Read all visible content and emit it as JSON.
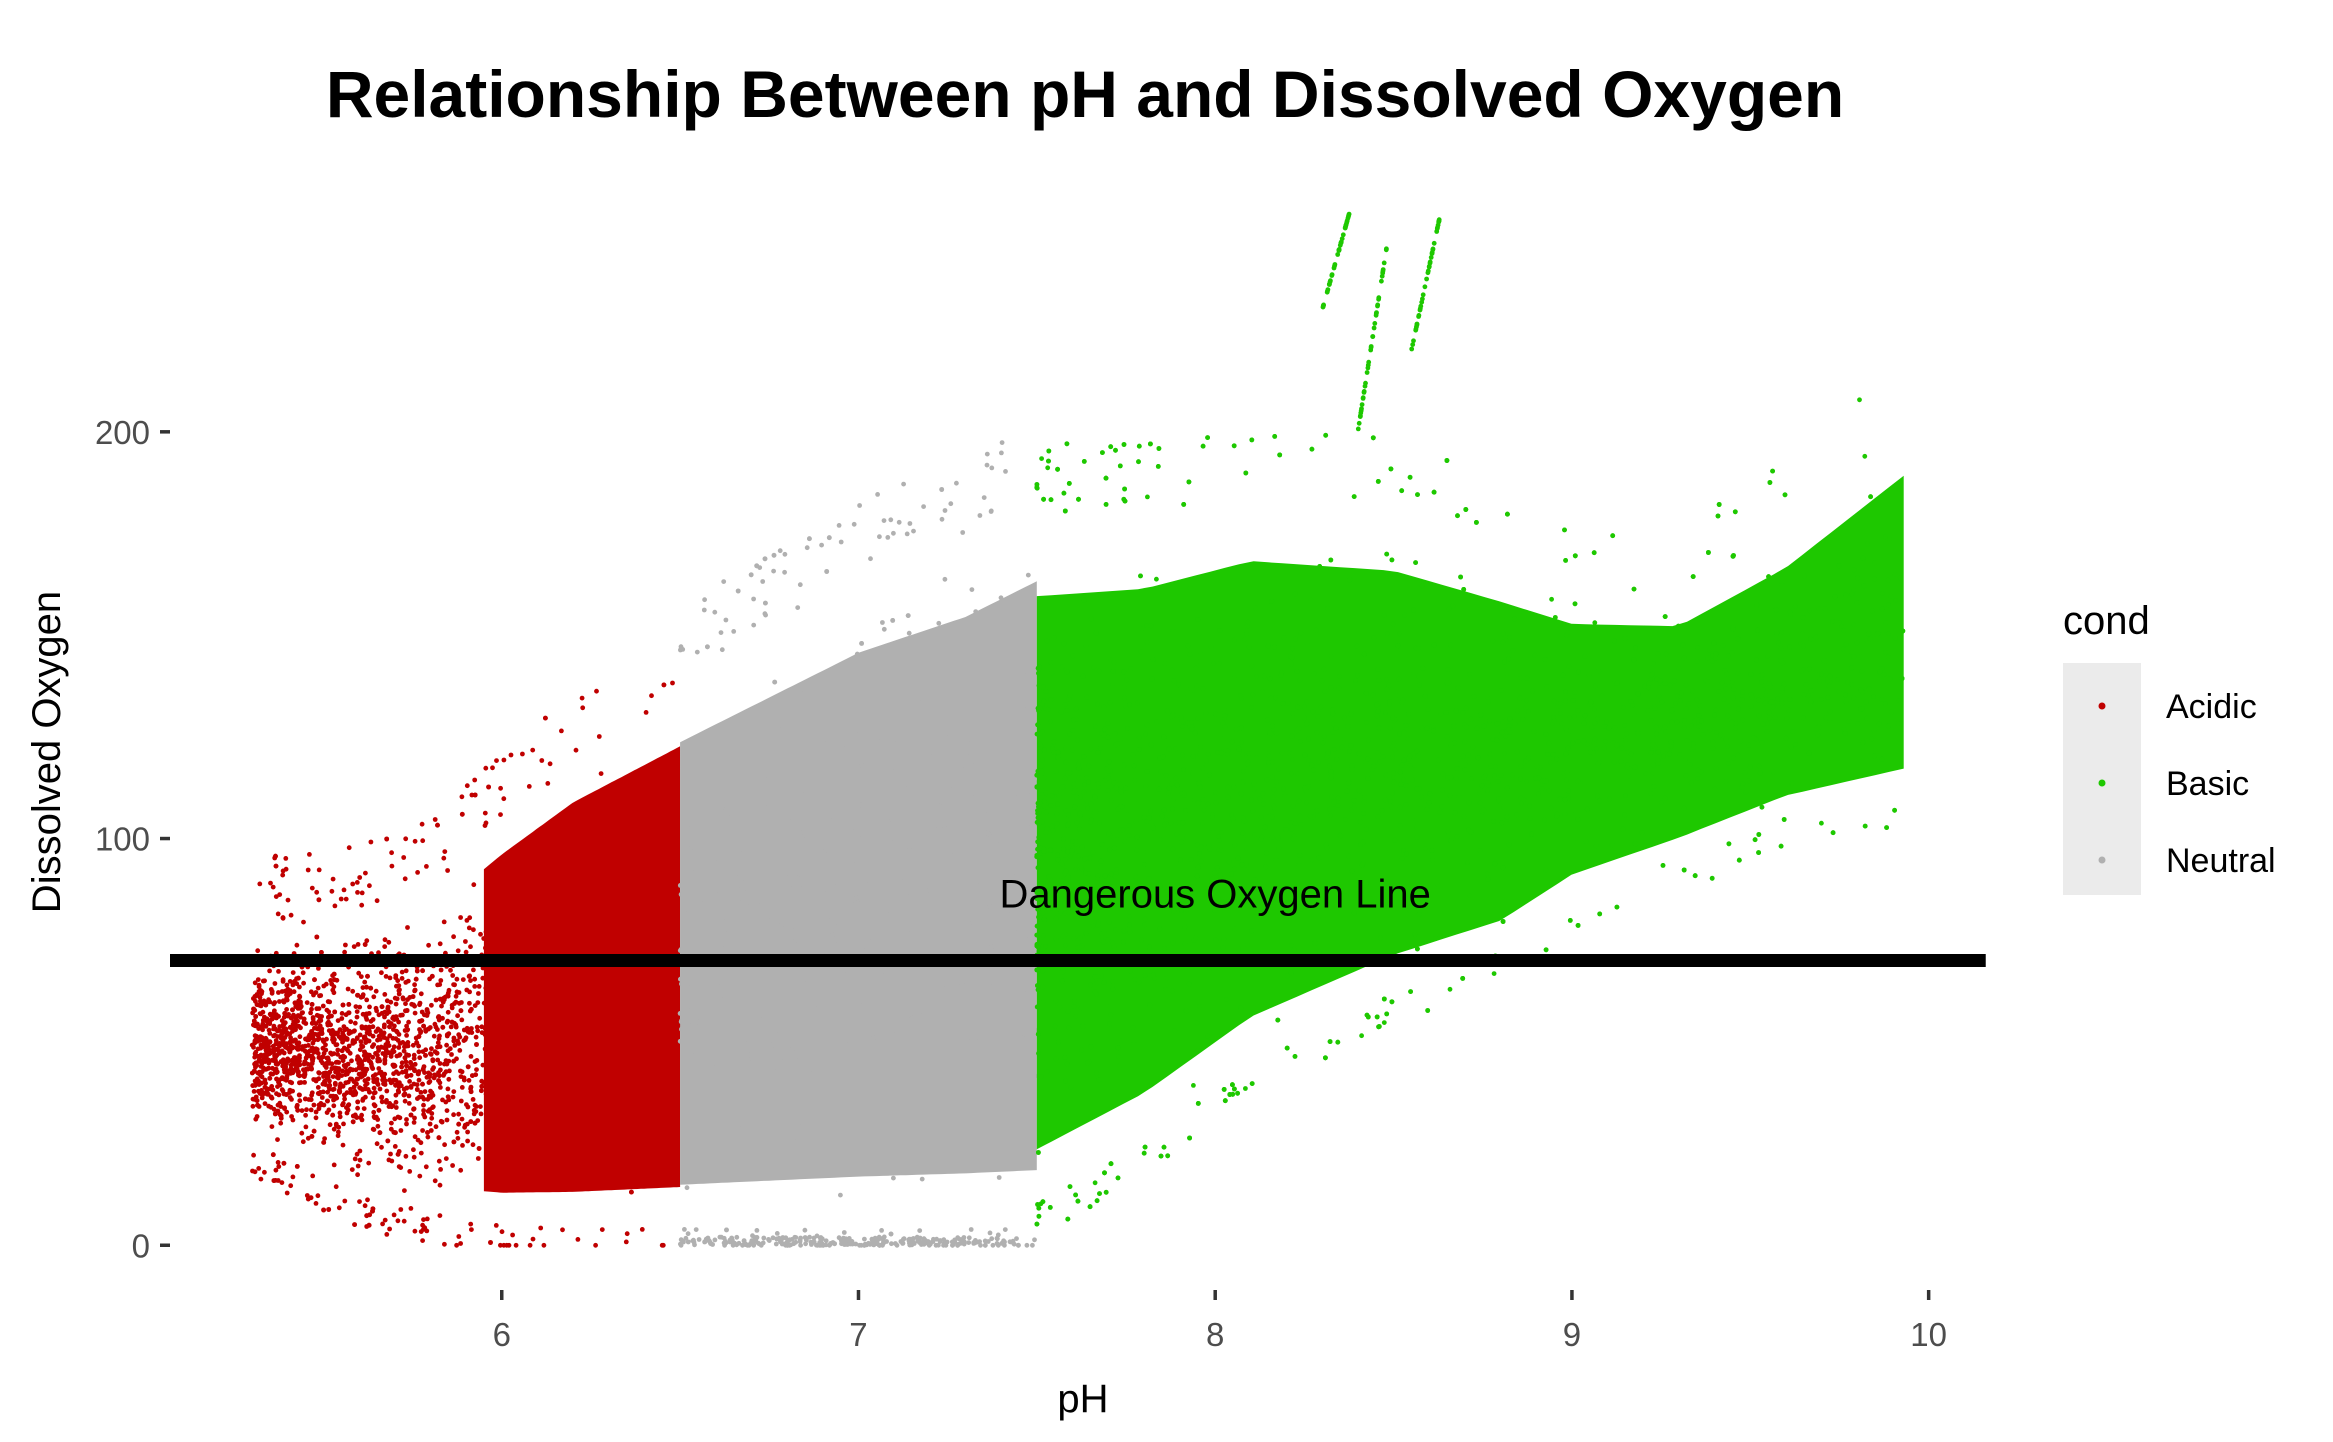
{
  "chart_data": {
    "type": "scatter",
    "title": "Relationship Between pH and Dissolved Oxygen",
    "xlabel": "pH",
    "ylabel": "Dissolved Oxygen",
    "xlim": [
      5.07,
      10.2
    ],
    "ylim": [
      -11,
      257
    ],
    "x_ticks": [
      6,
      7,
      8,
      9,
      10
    ],
    "x_tick_labels": [
      "6",
      "7",
      "8",
      "9",
      "10"
    ],
    "y_ticks": [
      0,
      100,
      200
    ],
    "y_tick_labels": [
      "0",
      "100",
      "200"
    ],
    "grid": false,
    "legend": {
      "title": "cond",
      "placement": "right",
      "entries": [
        {
          "label": "Acidic",
          "color": "#c00000"
        },
        {
          "label": "Basic",
          "color": "#1ec800"
        },
        {
          "label": "Neutral",
          "color": "#b0b0b0"
        }
      ]
    },
    "series": [
      {
        "name": "Acidic",
        "color": "#c00000",
        "x_range": [
          5.3,
          6.5
        ],
        "y_range": [
          0,
          148
        ],
        "envelope": [
          {
            "x": 5.3,
            "y_low": 25,
            "y_high": 78
          },
          {
            "x": 5.6,
            "y_low": 12,
            "y_high": 80
          },
          {
            "x": 5.8,
            "y_low": 8,
            "y_high": 88
          },
          {
            "x": 6.0,
            "y_low": 5,
            "y_high": 104
          },
          {
            "x": 6.2,
            "y_low": 4,
            "y_high": 118
          },
          {
            "x": 6.5,
            "y_low": 4,
            "y_high": 133
          }
        ]
      },
      {
        "name": "Neutral",
        "color": "#b0b0b0",
        "x_range": [
          6.5,
          7.5
        ],
        "y_range": [
          0,
          199
        ],
        "envelope": [
          {
            "x": 6.5,
            "y_low": 4,
            "y_high": 140
          },
          {
            "x": 6.8,
            "y_low": 4,
            "y_high": 155
          },
          {
            "x": 7.0,
            "y_low": 4,
            "y_high": 165
          },
          {
            "x": 7.3,
            "y_low": 4,
            "y_high": 175
          },
          {
            "x": 7.5,
            "y_low": 4,
            "y_high": 185
          }
        ]
      },
      {
        "name": "Basic",
        "color": "#1ec800",
        "x_range": [
          7.5,
          9.93
        ],
        "y_range": [
          10,
          255
        ],
        "envelope": [
          {
            "x": 7.5,
            "y_low": 10,
            "y_high": 180
          },
          {
            "x": 7.8,
            "y_low": 25,
            "y_high": 180
          },
          {
            "x": 8.1,
            "y_low": 45,
            "y_high": 185
          },
          {
            "x": 8.5,
            "y_low": 62,
            "y_high": 180
          },
          {
            "x": 8.8,
            "y_low": 72,
            "y_high": 170
          },
          {
            "x": 9.0,
            "y_low": 85,
            "y_high": 162
          },
          {
            "x": 9.3,
            "y_low": 95,
            "y_high": 160
          },
          {
            "x": 9.6,
            "y_low": 105,
            "y_high": 175
          },
          {
            "x": 9.93,
            "y_low": 110,
            "y_high": 200
          }
        ]
      }
    ],
    "reference_lines": [
      {
        "orientation": "horizontal",
        "y": 70,
        "x_from": 5.07,
        "x_to": 10.16,
        "color": "#000000",
        "label": "Dangerous Oxygen Line",
        "label_x": 8.0,
        "label_y": 83
      }
    ]
  }
}
